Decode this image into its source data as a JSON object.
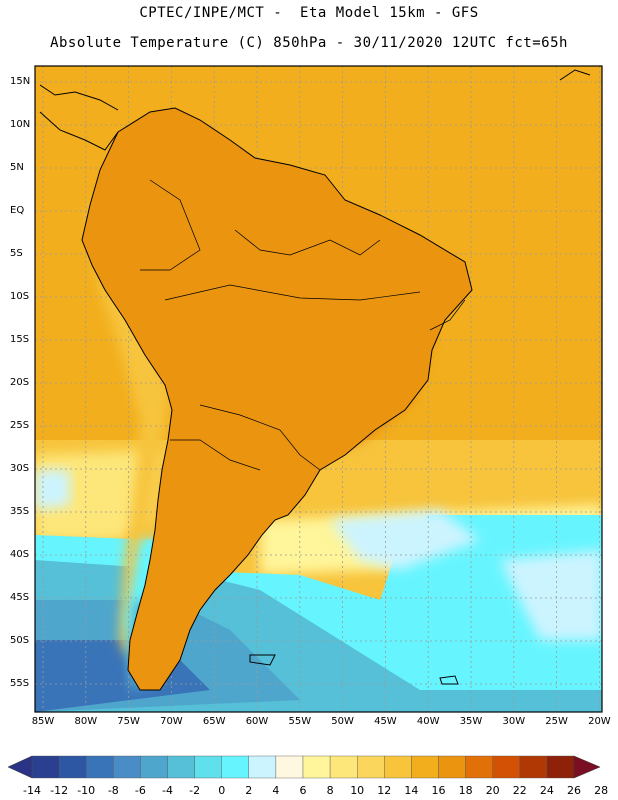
{
  "header": {
    "line1": "CPTEC/INPE/MCT -  Eta Model 15km - GFS",
    "line2": "Absolute Temperature (C) 850hPa - 30/11/2020 12UTC fct=65h"
  },
  "map": {
    "lat_labels": [
      "15N",
      "10N",
      "5N",
      "EQ",
      "5S",
      "10S",
      "15S",
      "20S",
      "25S",
      "30S",
      "35S",
      "40S",
      "45S",
      "50S",
      "55S"
    ],
    "lon_labels": [
      "85W",
      "80W",
      "75W",
      "70W",
      "65W",
      "60W",
      "55W",
      "50W",
      "45W",
      "40W",
      "35W",
      "30W",
      "25W",
      "20W"
    ]
  },
  "colorbar": {
    "labels": [
      "-14",
      "-12",
      "-10",
      "-8",
      "-6",
      "-4",
      "-2",
      "0",
      "2",
      "4",
      "6",
      "8",
      "10",
      "12",
      "14",
      "16",
      "18",
      "20",
      "22",
      "24",
      "26",
      "28"
    ],
    "colors": [
      "#2a3f8f",
      "#2d56a3",
      "#3a74b8",
      "#4a8cc6",
      "#4ea6cc",
      "#55c0d8",
      "#5fe0ec",
      "#66f5ff",
      "#ccf4ff",
      "#fff8e0",
      "#fff59a",
      "#fde77a",
      "#fbd65c",
      "#f7c43c",
      "#f2ae1c",
      "#ea9410",
      "#e27008",
      "#d35104",
      "#b03804",
      "#8e2108"
    ],
    "end_left": "#2a3386",
    "end_right": "#7a0f24"
  }
}
